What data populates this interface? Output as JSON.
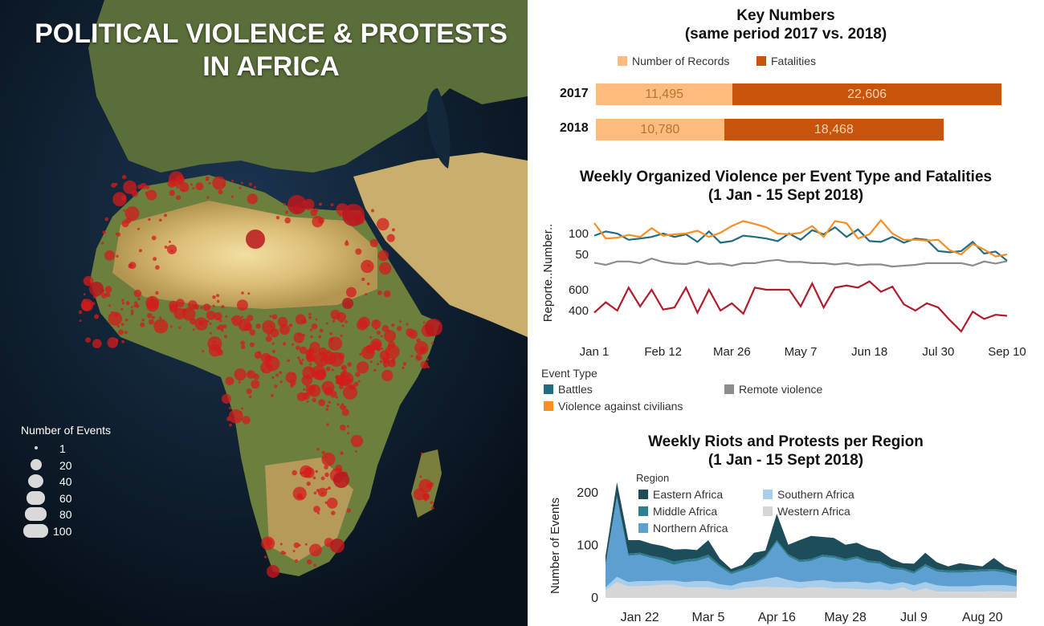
{
  "map": {
    "title_line1": "POLITICAL VIOLENCE & PROTESTS",
    "title_line2": "IN AFRICA",
    "legend_title": "Number of Events",
    "legend_items": [
      "1",
      "20",
      "40",
      "60",
      "80",
      "100"
    ]
  },
  "colors": {
    "records": "#fdbb7e",
    "fatalities": "#c8530a",
    "battles": "#1f6d7f",
    "remote_violence": "#8c8c8c",
    "violence_against_civilians": "#f98e23",
    "fatality_line": "#b01c2b",
    "eastern_africa": "#1d4d5a",
    "middle_africa": "#2b7f90",
    "northern_africa": "#5e9fd2",
    "southern_africa": "#a7cdeb",
    "western_africa": "#d6d6d6",
    "event_dot": "#d41b1b"
  },
  "key_numbers": {
    "title_line1": "Key Numbers",
    "title_line2": "(same period 2017 vs. 2018)",
    "legend": [
      "Number of Records",
      "Fatalities"
    ]
  },
  "violence": {
    "title_line1": "Weekly Organized Violence per Event Type and Fatalities",
    "title_line2": "(1 Jan - 15 Sept 2018)",
    "legend_title": "Event Type",
    "legend_items": [
      "Battles",
      "Remote violence",
      "Violence against civilians"
    ]
  },
  "riots": {
    "title_line1": "Weekly Riots and Protests per Region",
    "title_line2": "(1 Jan - 15 Sept 2018)",
    "legend_title": "Region",
    "legend_items": [
      "Eastern Africa",
      "Southern Africa",
      "Middle Africa",
      "Western Africa",
      "Northern Africa"
    ]
  },
  "chart_data": [
    {
      "type": "bar",
      "title": "Key Numbers (same period 2017 vs. 2018)",
      "stacked": true,
      "categories": [
        "2017",
        "2018"
      ],
      "series": [
        {
          "name": "Number of Records",
          "values": [
            11495,
            10780
          ],
          "labels": [
            "11,495",
            "10,780"
          ]
        },
        {
          "name": "Fatalities",
          "values": [
            22606,
            18468
          ],
          "labels": [
            "22,606",
            "18,468"
          ]
        }
      ],
      "legend": "top"
    },
    {
      "type": "line",
      "title": "Weekly Organized Violence per Event Type and Fatalities (1 Jan - 15 Sept 2018)",
      "ylabel": "Reporte..Number..",
      "x_ticks": [
        "Jan 1",
        "Feb 12",
        "Mar 26",
        "May 7",
        "Jun 18",
        "Jul 30",
        "Sep 10"
      ],
      "x": [
        "2018-01-01",
        "2018-01-08",
        "2018-01-15",
        "2018-01-22",
        "2018-01-29",
        "2018-02-05",
        "2018-02-12",
        "2018-02-19",
        "2018-02-26",
        "2018-03-05",
        "2018-03-12",
        "2018-03-19",
        "2018-03-26",
        "2018-04-02",
        "2018-04-09",
        "2018-04-16",
        "2018-04-23",
        "2018-04-30",
        "2018-05-07",
        "2018-05-14",
        "2018-05-21",
        "2018-05-28",
        "2018-06-04",
        "2018-06-11",
        "2018-06-18",
        "2018-06-25",
        "2018-07-02",
        "2018-07-09",
        "2018-07-16",
        "2018-07-23",
        "2018-07-30",
        "2018-08-06",
        "2018-08-13",
        "2018-08-20",
        "2018-08-27",
        "2018-09-03",
        "2018-09-10"
      ],
      "panels": [
        {
          "name": "Event records",
          "y_ticks": [
            50,
            100
          ],
          "series": [
            {
              "name": "Battles",
              "values": [
                95,
                105,
                100,
                85,
                88,
                92,
                100,
                92,
                98,
                80,
                105,
                78,
                82,
                95,
                92,
                88,
                82,
                100,
                85,
                108,
                98,
                115,
                92,
                110,
                82,
                80,
                92,
                78,
                88,
                85,
                58,
                55,
                58,
                80,
                52,
                57,
                35
              ]
            },
            {
              "name": "Remote violence",
              "values": [
                30,
                25,
                33,
                33,
                29,
                40,
                32,
                28,
                27,
                33,
                27,
                28,
                23,
                29,
                29,
                34,
                37,
                32,
                32,
                29,
                29,
                26,
                29,
                24,
                26,
                26,
                21,
                23,
                25,
                29,
                29,
                29,
                29,
                23,
                33,
                28,
                34
              ]
            },
            {
              "name": "Violence against civilians",
              "values": [
                125,
                88,
                90,
                97,
                92,
                113,
                95,
                98,
                100,
                107,
                92,
                102,
                118,
                130,
                123,
                115,
                100,
                98,
                102,
                118,
                92,
                130,
                125,
                88,
                98,
                132,
                100,
                85,
                85,
                83,
                85,
                60,
                50,
                75,
                62,
                45,
                50
              ]
            }
          ]
        },
        {
          "name": "Fatalities",
          "y_ticks": [
            400,
            600
          ],
          "series": [
            {
              "name": "Fatalities",
              "values": [
                380,
                480,
                400,
                620,
                440,
                600,
                410,
                430,
                620,
                380,
                600,
                400,
                470,
                370,
                620,
                600,
                600,
                600,
                440,
                660,
                430,
                620,
                640,
                620,
                680,
                580,
                630,
                460,
                400,
                470,
                430,
                310,
                200,
                390,
                320,
                360,
                350
              ]
            }
          ]
        }
      ],
      "legend": "bottom"
    },
    {
      "type": "area",
      "stacked": true,
      "title": "Weekly Riots and Protests per Region (1 Jan - 15 Sept 2018)",
      "ylabel": "Number of Events",
      "y_ticks": [
        0,
        100,
        200
      ],
      "ylim": [
        0,
        230
      ],
      "x_ticks": [
        "Jan 22",
        "Mar 5",
        "Apr 16",
        "May 28",
        "Jul 9",
        "Aug 20"
      ],
      "x": [
        "2018-01-01",
        "2018-01-08",
        "2018-01-15",
        "2018-01-22",
        "2018-01-29",
        "2018-02-05",
        "2018-02-12",
        "2018-02-19",
        "2018-02-26",
        "2018-03-05",
        "2018-03-12",
        "2018-03-19",
        "2018-03-26",
        "2018-04-02",
        "2018-04-09",
        "2018-04-16",
        "2018-04-23",
        "2018-04-30",
        "2018-05-07",
        "2018-05-14",
        "2018-05-21",
        "2018-05-28",
        "2018-06-04",
        "2018-06-11",
        "2018-06-18",
        "2018-06-25",
        "2018-07-02",
        "2018-07-09",
        "2018-07-16",
        "2018-07-23",
        "2018-07-30",
        "2018-08-06",
        "2018-08-13",
        "2018-08-20",
        "2018-08-27",
        "2018-09-03",
        "2018-09-10"
      ],
      "series": [
        {
          "name": "Western Africa",
          "values": [
            15,
            30,
            22,
            22,
            23,
            25,
            25,
            20,
            20,
            20,
            17,
            15,
            19,
            20,
            21,
            20,
            20,
            18,
            20,
            20,
            18,
            18,
            17,
            16,
            16,
            14,
            20,
            12,
            18,
            12,
            12,
            12,
            12,
            12,
            13,
            12,
            12
          ]
        },
        {
          "name": "Southern Africa",
          "values": [
            5,
            10,
            8,
            10,
            9,
            8,
            8,
            10,
            12,
            12,
            9,
            8,
            11,
            12,
            15,
            20,
            14,
            12,
            12,
            14,
            12,
            12,
            14,
            12,
            15,
            12,
            10,
            12,
            12,
            12,
            10,
            10,
            10,
            12,
            11,
            12,
            10
          ]
        },
        {
          "name": "Northern Africa",
          "values": [
            40,
            150,
            50,
            50,
            44,
            38,
            30,
            38,
            38,
            45,
            33,
            22,
            22,
            28,
            40,
            66,
            45,
            38,
            38,
            44,
            46,
            40,
            44,
            39,
            34,
            29,
            23,
            22,
            30,
            26,
            26,
            26,
            27,
            26,
            27,
            24,
            20
          ]
        },
        {
          "name": "Middle Africa",
          "values": [
            5,
            5,
            4,
            4,
            4,
            5,
            6,
            5,
            5,
            5,
            4,
            4,
            4,
            4,
            4,
            4,
            4,
            4,
            4,
            4,
            4,
            4,
            4,
            4,
            4,
            4,
            4,
            4,
            4,
            4,
            4,
            4,
            4,
            4,
            4,
            4,
            4
          ]
        },
        {
          "name": "Eastern Africa",
          "values": [
            15,
            25,
            26,
            24,
            23,
            23,
            23,
            20,
            16,
            28,
            12,
            6,
            7,
            22,
            10,
            50,
            18,
            38,
            44,
            34,
            34,
            27,
            26,
            24,
            21,
            16,
            9,
            15,
            22,
            14,
            8,
            14,
            10,
            6,
            21,
            8,
            7
          ]
        }
      ],
      "legend": "top-left"
    }
  ]
}
